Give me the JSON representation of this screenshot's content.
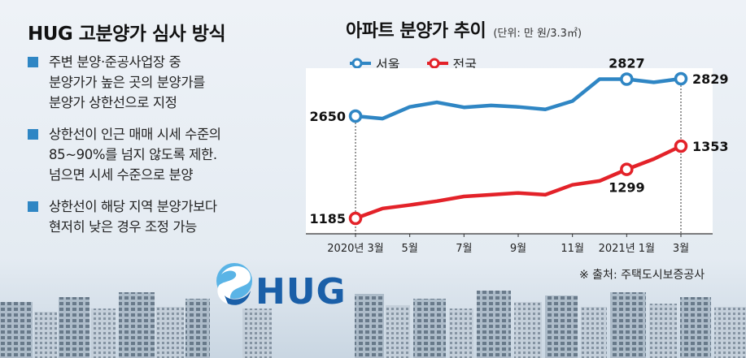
{
  "left_panel": {
    "title": "HUG 고분양가 심사 방식",
    "bullets": [
      [
        "주변 분양·준공사업장 중",
        "분양가가 높은 곳의 분양가를",
        "분양가 상한선으로 지정"
      ],
      [
        "상한선이 인근 매매 시세 수준의",
        "85~90%를 넘지 않도록 제한.",
        "넘으면 시세 수준으로 분양"
      ],
      [
        "상한선이 해당 지역 분양가보다",
        "현저히 낮은 경우 조정 가능"
      ]
    ]
  },
  "logo": {
    "text": "HUG",
    "icon": "hug-swirl-logo-icon"
  },
  "source": "※ 출처: 주택도시보증공사",
  "colors": {
    "seoul": "#2f86c4",
    "national": "#e32229",
    "bullet": "#2f86c4",
    "logo_blue": "#1a5fa8",
    "logo_light": "#5ab4e6"
  },
  "chart_data": {
    "type": "line",
    "title": "아파트 분양가 추이",
    "unit": "(단위: 만 원/3.3㎡)",
    "x": [
      "2020-03",
      "2020-04",
      "2020-05",
      "2020-06",
      "2020-07",
      "2020-08",
      "2020-09",
      "2020-10",
      "2020-11",
      "2020-12",
      "2021-01",
      "2021-02",
      "2021-03"
    ],
    "x_tick_labels": [
      {
        "index": 0,
        "label": "2020년 3월"
      },
      {
        "index": 2,
        "label": "5월"
      },
      {
        "index": 4,
        "label": "7월"
      },
      {
        "index": 6,
        "label": "9월"
      },
      {
        "index": 8,
        "label": "11월"
      },
      {
        "index": 10,
        "label": "2021년 1월"
      },
      {
        "index": 12,
        "label": "3월"
      }
    ],
    "series": [
      {
        "name": "서울",
        "color": "#2f86c4",
        "values": [
          2650,
          2638,
          2694,
          2716,
          2692,
          2701,
          2694,
          2682,
          2722,
          2827,
          2827,
          2812,
          2829
        ],
        "labels": [
          {
            "index": 0,
            "text": "2650"
          },
          {
            "index": 10,
            "text": "2827"
          },
          {
            "index": 12,
            "text": "2829"
          }
        ],
        "markers": [
          0,
          10,
          12
        ]
      },
      {
        "name": "전국",
        "color": "#e32229",
        "values": [
          1185,
          1208,
          1216,
          1225,
          1236,
          1240,
          1244,
          1240,
          1263,
          1272,
          1299,
          1323,
          1353
        ],
        "labels": [
          {
            "index": 0,
            "text": "1185"
          },
          {
            "index": 10,
            "text": "1299"
          },
          {
            "index": 12,
            "text": "1353"
          }
        ],
        "markers": [
          0,
          10,
          12
        ]
      }
    ],
    "legend_position": "top-left",
    "grid": false
  }
}
